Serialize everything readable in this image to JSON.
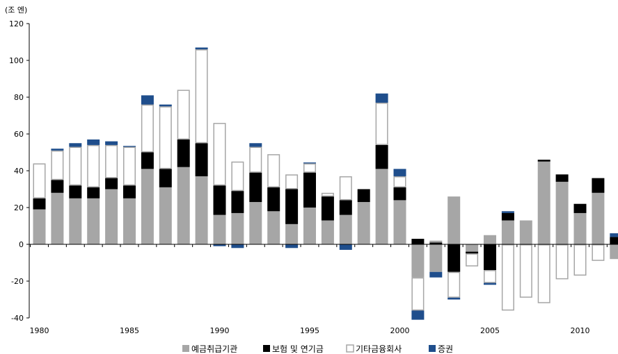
{
  "chart_data": {
    "type": "bar",
    "stacked": true,
    "unit_label": "(조 엔)",
    "ylim": [
      -40,
      120
    ],
    "yticks": [
      -40,
      -20,
      0,
      20,
      40,
      60,
      80,
      100,
      120
    ],
    "xtick_labels": [
      "1980",
      "1985",
      "1990",
      "1995",
      "2000",
      "2005",
      "2010"
    ],
    "categories": [
      "1980",
      "1981",
      "1982",
      "1983",
      "1984",
      "1985",
      "1986",
      "1987",
      "1988",
      "1989",
      "1990",
      "1991",
      "1992",
      "1993",
      "1994",
      "1995",
      "1996",
      "1997",
      "1998",
      "1999",
      "2000",
      "2001",
      "2002",
      "2003",
      "2004",
      "2005",
      "2006",
      "2007",
      "2008",
      "2009",
      "2010",
      "2011",
      "2012"
    ],
    "series": [
      {
        "name": "예금취급기관",
        "style": "gray",
        "color": "#a6a6a6",
        "values": [
          19,
          28,
          25,
          25,
          30,
          25,
          41,
          31,
          42,
          37,
          16,
          17,
          23,
          18,
          11,
          20,
          13,
          16,
          23,
          41,
          24,
          -18,
          -15,
          26,
          -4,
          5,
          13,
          13,
          45,
          34,
          17,
          28,
          -8
        ]
      },
      {
        "name": "보험 및 연기금",
        "style": "black",
        "color": "#000000",
        "values": [
          6,
          7,
          7,
          6,
          6,
          7,
          9,
          10,
          15,
          18,
          16,
          12,
          16,
          13,
          19,
          19,
          13,
          8,
          7,
          13,
          7,
          3,
          1,
          -15,
          -1,
          -14,
          4,
          0,
          1,
          4,
          5,
          8,
          4
        ]
      },
      {
        "name": "기타금융회사",
        "style": "outline",
        "color": "#ffffff",
        "values": [
          19,
          16,
          21,
          23,
          18,
          21,
          26,
          34,
          27,
          51,
          34,
          16,
          14,
          18,
          8,
          5,
          2,
          13,
          0,
          23,
          6,
          -18,
          1,
          -14,
          -7,
          -7,
          -36,
          -29,
          -32,
          -19,
          -17,
          -9,
          0
        ]
      },
      {
        "name": "증권",
        "style": "navy",
        "color": "#1f4e8c",
        "values": [
          0,
          1,
          2,
          3,
          2,
          0.5,
          5,
          1,
          0,
          1,
          -1,
          -2,
          2,
          0,
          -2,
          0.5,
          0,
          -3,
          0,
          5,
          4,
          -5,
          -3,
          -1,
          0,
          -1,
          1,
          0,
          0,
          0,
          0,
          0,
          2
        ]
      }
    ],
    "legend_position": "bottom-center",
    "grid": false
  }
}
